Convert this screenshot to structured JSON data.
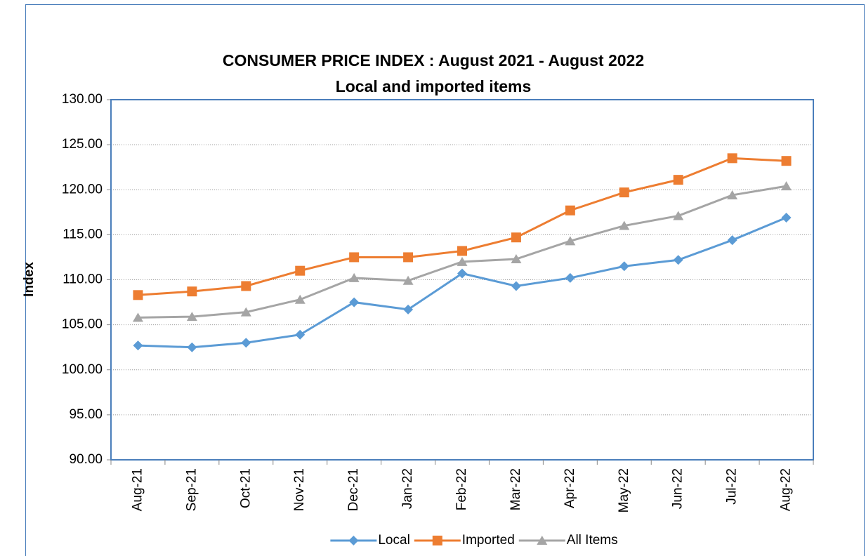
{
  "chart_data": {
    "type": "line",
    "title": "CONSUMER PRICE INDEX : August 2021 - August 2022",
    "subtitle": "Local and imported items",
    "y_label": "Index",
    "categories": [
      "Aug-21",
      "Sep-21",
      "Oct-21",
      "Nov-21",
      "Dec-21",
      "Jan-22",
      "Feb-22",
      "Mar-22",
      "Apr-22",
      "May-22",
      "Jun-22",
      "Jul-22",
      "Aug-22"
    ],
    "series": [
      {
        "name": "Local",
        "color": "#5b9bd5",
        "marker": "diamond",
        "values": [
          102.7,
          102.5,
          103.0,
          103.9,
          107.5,
          106.7,
          110.7,
          109.3,
          110.2,
          111.5,
          112.2,
          114.4,
          116.9
        ]
      },
      {
        "name": "Imported",
        "color": "#ed7d31",
        "marker": "square",
        "values": [
          108.3,
          108.7,
          109.3,
          111.0,
          112.5,
          112.5,
          113.2,
          114.7,
          117.7,
          119.7,
          121.1,
          123.5,
          123.2
        ]
      },
      {
        "name": "All Items",
        "color": "#a5a5a5",
        "marker": "triangle",
        "values": [
          105.8,
          105.9,
          106.4,
          107.8,
          110.2,
          109.9,
          112.0,
          112.3,
          114.3,
          116.0,
          117.1,
          119.4,
          120.4
        ]
      }
    ],
    "ylim": [
      90,
      130
    ],
    "yticks": [
      {
        "value": 90,
        "label": "90.00"
      },
      {
        "value": 95,
        "label": "95.00"
      },
      {
        "value": 100,
        "label": "100.00"
      },
      {
        "value": 105,
        "label": "105.00"
      },
      {
        "value": 110,
        "label": "110.00"
      },
      {
        "value": 115,
        "label": "115.00"
      },
      {
        "value": 120,
        "label": "120.00"
      },
      {
        "value": 125,
        "label": "125.00"
      },
      {
        "value": 130,
        "label": "130.00"
      }
    ],
    "grid": true,
    "legend": "bottom"
  }
}
